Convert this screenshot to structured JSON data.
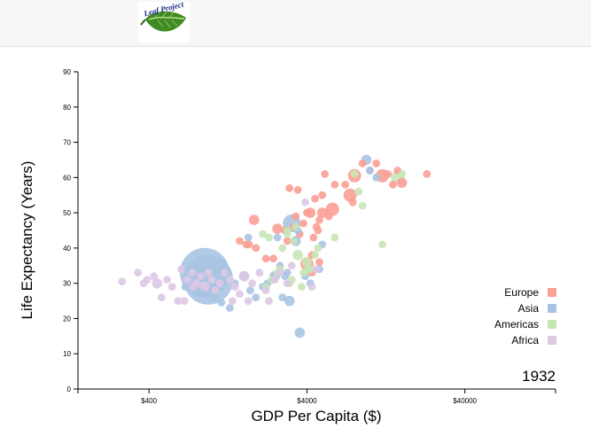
{
  "header": {
    "logo_text": "Leaf Project"
  },
  "chart_data": {
    "type": "scatter",
    "title": "",
    "xlabel": "GDP Per Capita ($)",
    "ylabel": "Life Expectancy (Years)",
    "xscale": "log",
    "xlim": [
      142,
      150000
    ],
    "ylim": [
      0,
      90
    ],
    "xticks": [
      400,
      4000,
      40000
    ],
    "xtick_labels": [
      "$400",
      "$4000",
      "$40000"
    ],
    "yticks": [
      0,
      10,
      20,
      30,
      40,
      50,
      60,
      70,
      80,
      90
    ],
    "year": "1932",
    "legend_position": "bottom-right",
    "colors": {
      "Europe": "#fb9f95",
      "Asia": "#a9c4e2",
      "Americas": "#c6e6b5",
      "Africa": "#ddc8e4"
    },
    "series": [
      {
        "name": "Europe",
        "points": [
          [
            1500,
            42,
            1
          ],
          [
            1650,
            41,
            1
          ],
          [
            1720,
            41,
            1
          ],
          [
            1850,
            48,
            2
          ],
          [
            2200,
            37,
            1
          ],
          [
            2450,
            37,
            1
          ],
          [
            2600,
            45.5,
            2
          ],
          [
            3100,
            57,
            1
          ],
          [
            3500,
            56.5,
            1
          ],
          [
            3000,
            42,
            1
          ],
          [
            3400,
            49,
            1
          ],
          [
            3800,
            47,
            1
          ],
          [
            4500,
            54,
            1
          ],
          [
            4200,
            50,
            2
          ],
          [
            4700,
            45,
            1
          ],
          [
            4400,
            43,
            1
          ],
          [
            4000,
            35.5,
            3
          ],
          [
            5000,
            50,
            2
          ],
          [
            5500,
            49,
            1
          ],
          [
            5800,
            51,
            3
          ],
          [
            6000,
            58,
            1
          ],
          [
            7000,
            58,
            1
          ],
          [
            7500,
            55,
            3
          ],
          [
            8000,
            60.5,
            3
          ],
          [
            9000,
            64,
            1
          ],
          [
            10000,
            62,
            1
          ],
          [
            11000,
            64,
            1
          ],
          [
            12000,
            60.5,
            3
          ],
          [
            13000,
            61,
            1
          ],
          [
            14000,
            58,
            1
          ],
          [
            15000,
            62,
            1
          ],
          [
            16000,
            58.5,
            2
          ],
          [
            23000,
            61,
            1
          ],
          [
            5200,
            61,
            1
          ],
          [
            5000,
            55,
            1
          ],
          [
            7800,
            53,
            1
          ],
          [
            4800,
            48,
            1
          ],
          [
            4600,
            46,
            1
          ],
          [
            2900,
            45,
            1
          ],
          [
            3600,
            44,
            1
          ],
          [
            4300,
            38,
            1
          ],
          [
            1900,
            40,
            1
          ],
          [
            4800,
            36,
            1
          ],
          [
            4300,
            33,
            1
          ],
          [
            3300,
            46,
            1
          ],
          [
            4000,
            50,
            1
          ]
        ]
      },
      {
        "name": "Asia",
        "points": [
          [
            900,
            33,
            5
          ],
          [
            950,
            31,
            5
          ],
          [
            1100,
            30.5,
            4
          ],
          [
            820,
            36,
            2
          ],
          [
            760,
            35,
            1
          ],
          [
            730,
            34,
            1
          ],
          [
            680,
            29,
            1
          ],
          [
            880,
            27,
            1
          ],
          [
            1050,
            26,
            1
          ],
          [
            1150,
            24.5,
            1
          ],
          [
            1300,
            23,
            1
          ],
          [
            1250,
            33,
            1
          ],
          [
            1400,
            30,
            1
          ],
          [
            1600,
            32,
            2
          ],
          [
            1750,
            28,
            1
          ],
          [
            1900,
            26,
            1
          ],
          [
            2100,
            29,
            1
          ],
          [
            2250,
            30,
            1
          ],
          [
            2500,
            32,
            2
          ],
          [
            2700,
            35,
            1
          ],
          [
            2900,
            32,
            1
          ],
          [
            3200,
            47,
            4
          ],
          [
            3500,
            45,
            1
          ],
          [
            3400,
            42,
            2
          ],
          [
            2600,
            43,
            1
          ],
          [
            1700,
            43,
            1
          ],
          [
            3900,
            32,
            1
          ],
          [
            3100,
            25,
            2
          ],
          [
            2800,
            26,
            1
          ],
          [
            4200,
            30,
            1
          ],
          [
            3600,
            16,
            2
          ],
          [
            9500,
            65,
            2
          ],
          [
            10000,
            62,
            1
          ],
          [
            11000,
            60,
            1
          ],
          [
            4800,
            34,
            1
          ],
          [
            5000,
            41,
            1
          ],
          [
            3000,
            33,
            1
          ]
        ]
      },
      {
        "name": "Americas",
        "points": [
          [
            2100,
            44,
            1
          ],
          [
            2300,
            43,
            1
          ],
          [
            2800,
            40,
            1
          ],
          [
            3300,
            42,
            1
          ],
          [
            3000,
            45,
            1
          ],
          [
            3500,
            38,
            2
          ],
          [
            4000,
            36,
            2
          ],
          [
            4500,
            38,
            1
          ],
          [
            3800,
            33,
            1
          ],
          [
            3200,
            31,
            1
          ],
          [
            2600,
            33,
            1
          ],
          [
            2400,
            31,
            1
          ],
          [
            2200,
            29,
            1
          ],
          [
            3100,
            30,
            1
          ],
          [
            3700,
            29,
            1
          ],
          [
            4200,
            34,
            1
          ],
          [
            4700,
            40,
            1
          ],
          [
            6000,
            43,
            1
          ],
          [
            8000,
            61,
            1
          ],
          [
            8500,
            56,
            1
          ],
          [
            9000,
            52,
            1
          ],
          [
            15000,
            60,
            3
          ],
          [
            16000,
            61,
            1
          ],
          [
            12000,
            41,
            1
          ],
          [
            4100,
            34,
            1
          ],
          [
            2700,
            34,
            1
          ],
          [
            3400,
            46,
            1
          ],
          [
            3000,
            44,
            1
          ]
        ]
      },
      {
        "name": "Africa",
        "points": [
          [
            270,
            30.5,
            1
          ],
          [
            340,
            33,
            1
          ],
          [
            390,
            31,
            1
          ],
          [
            430,
            32,
            1
          ],
          [
            450,
            30,
            2
          ],
          [
            520,
            31,
            1
          ],
          [
            560,
            29,
            1
          ],
          [
            610,
            25,
            1
          ],
          [
            640,
            34,
            1
          ],
          [
            700,
            31,
            1
          ],
          [
            750,
            33,
            1
          ],
          [
            800,
            30,
            1
          ],
          [
            850,
            32,
            1
          ],
          [
            900,
            29,
            2
          ],
          [
            950,
            33,
            1
          ],
          [
            1000,
            31,
            1
          ],
          [
            1050,
            28,
            1
          ],
          [
            1120,
            30,
            1
          ],
          [
            1200,
            33,
            1
          ],
          [
            1300,
            31,
            1
          ],
          [
            1400,
            29,
            1
          ],
          [
            1500,
            27,
            1
          ],
          [
            1600,
            32,
            2
          ],
          [
            1700,
            25,
            1
          ],
          [
            1800,
            30,
            1
          ],
          [
            2000,
            33,
            1
          ],
          [
            2200,
            28,
            1
          ],
          [
            2500,
            31,
            1
          ],
          [
            2700,
            33,
            1
          ],
          [
            3000,
            30,
            1
          ],
          [
            3200,
            35,
            1
          ],
          [
            3900,
            53,
            1
          ],
          [
            4300,
            29,
            1
          ],
          [
            4600,
            34,
            1
          ],
          [
            480,
            26,
            1
          ],
          [
            670,
            25,
            1
          ],
          [
            1350,
            25,
            1
          ],
          [
            2300,
            25,
            1
          ],
          [
            760,
            29,
            1
          ],
          [
            370,
            30,
            1
          ]
        ]
      }
    ]
  }
}
